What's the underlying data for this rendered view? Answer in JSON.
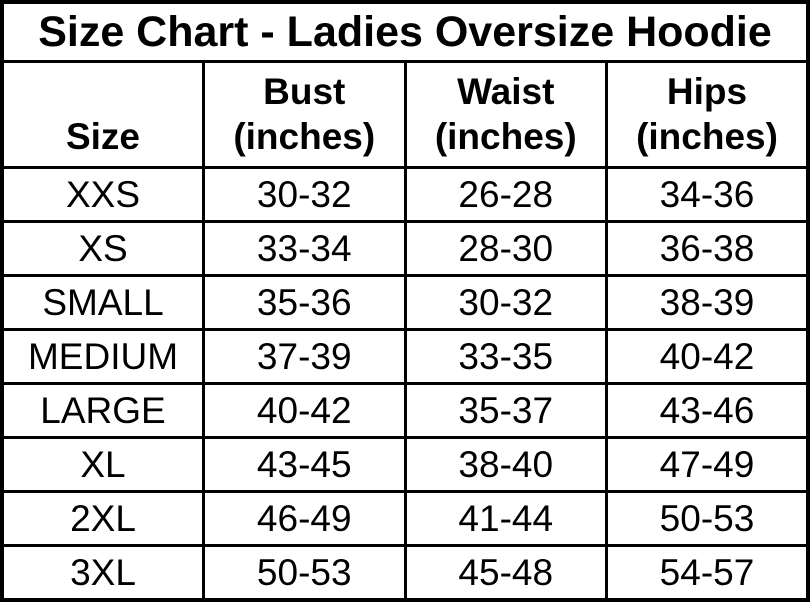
{
  "title": "Size Chart - Ladies Oversize Hoodie",
  "header": {
    "size": "Size",
    "bust": {
      "line1": "Bust",
      "line2": "(inches)"
    },
    "waist": {
      "line1": "Waist",
      "line2": "(inches)"
    },
    "hips": {
      "line1": "Hips",
      "line2": "(inches)"
    }
  },
  "rows": [
    {
      "size": "XXS",
      "bust": "30-32",
      "waist": "26-28",
      "hips": "34-36"
    },
    {
      "size": "XS",
      "bust": "33-34",
      "waist": "28-30",
      "hips": "36-38"
    },
    {
      "size": "SMALL",
      "bust": "35-36",
      "waist": "30-32",
      "hips": "38-39"
    },
    {
      "size": "MEDIUM",
      "bust": "37-39",
      "waist": "33-35",
      "hips": "40-42"
    },
    {
      "size": "LARGE",
      "bust": "40-42",
      "waist": "35-37",
      "hips": "43-46"
    },
    {
      "size": "XL",
      "bust": "43-45",
      "waist": "38-40",
      "hips": "47-49"
    },
    {
      "size": "2XL",
      "bust": "46-49",
      "waist": "41-44",
      "hips": "50-53"
    },
    {
      "size": "3XL",
      "bust": "50-53",
      "waist": "45-48",
      "hips": "54-57"
    }
  ],
  "colors": {
    "text": "#000000",
    "border": "#000000",
    "background": "#ffffff"
  },
  "chart_data": {
    "type": "table",
    "title": "Size Chart - Ladies Oversize Hoodie",
    "columns": [
      "Size",
      "Bust (inches)",
      "Waist (inches)",
      "Hips (inches)"
    ],
    "rows": [
      [
        "XXS",
        "30-32",
        "26-28",
        "34-36"
      ],
      [
        "XS",
        "33-34",
        "28-30",
        "36-38"
      ],
      [
        "SMALL",
        "35-36",
        "30-32",
        "38-39"
      ],
      [
        "MEDIUM",
        "37-39",
        "33-35",
        "40-42"
      ],
      [
        "LARGE",
        "40-42",
        "35-37",
        "43-46"
      ],
      [
        "XL",
        "43-45",
        "38-40",
        "47-49"
      ],
      [
        "2XL",
        "46-49",
        "41-44",
        "50-53"
      ],
      [
        "3XL",
        "50-53",
        "45-48",
        "54-57"
      ]
    ]
  }
}
